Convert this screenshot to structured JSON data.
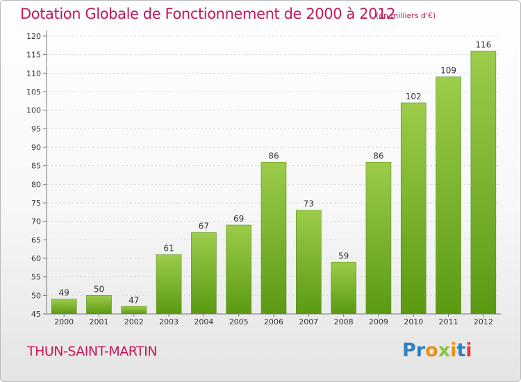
{
  "header": {
    "title": "Dotation Globale de Fonctionnement de 2000 à 2012",
    "unit": "(en milliers d'€)"
  },
  "footer": {
    "commune": "THUN-SAINT-MARTIN",
    "logo_letters": [
      "P",
      "r",
      "o",
      "x",
      "i",
      "t",
      "i"
    ]
  },
  "colors": {
    "title": "#c2185b",
    "bar_top": "#9ccc4a",
    "bar_bottom": "#5a9a12",
    "logo": [
      "#2f7fc1",
      "#2f7fc1",
      "#e8901a",
      "#8bc34a",
      "#e8901a",
      "#2f7fc1",
      "#e53935"
    ]
  },
  "chart_data": {
    "type": "bar",
    "title": "Dotation Globale de Fonctionnement de 2000 à 2012",
    "subtitle": "(en milliers d'€)",
    "xlabel": "",
    "ylabel": "",
    "categories": [
      "2000",
      "2001",
      "2002",
      "2003",
      "2004",
      "2005",
      "2006",
      "2007",
      "2008",
      "2009",
      "2010",
      "2011",
      "2012"
    ],
    "values": [
      49,
      50,
      47,
      61,
      67,
      69,
      86,
      73,
      59,
      86,
      102,
      109,
      116
    ],
    "ylim": [
      45,
      120
    ],
    "yticks": [
      45,
      50,
      55,
      60,
      65,
      70,
      75,
      80,
      85,
      90,
      95,
      100,
      105,
      110,
      115,
      120
    ],
    "grid": true,
    "data_labels": true
  }
}
